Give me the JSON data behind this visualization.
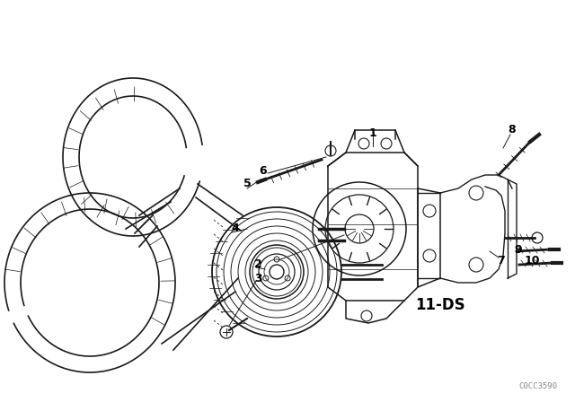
{
  "background_color": "#ffffff",
  "line_color": "#1a1a1a",
  "label_color": "#000000",
  "fig_width": 6.4,
  "fig_height": 4.48,
  "dpi": 100,
  "watermark_text": "C0CC3590",
  "diagram_label": "11-DS"
}
